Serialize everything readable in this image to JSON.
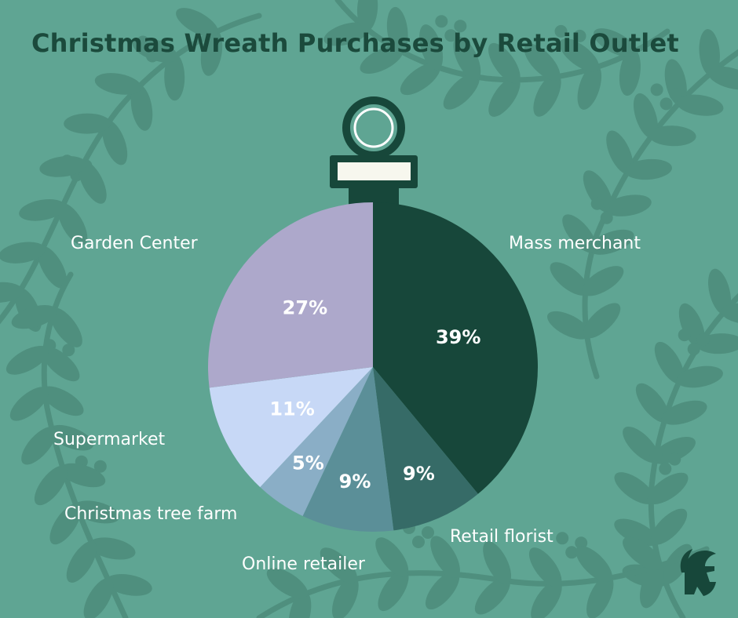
{
  "title": "Christmas Wreath Purchases by Retail Outlet",
  "chart_data": {
    "type": "pie",
    "title": "Christmas Wreath Purchases by Retail Outlet",
    "categories": [
      "Mass merchant",
      "Retail florist",
      "Online retailer",
      "Christmas tree farm",
      "Supermarket",
      "Garden Center"
    ],
    "values": [
      39,
      9,
      9,
      5,
      11,
      27
    ],
    "value_labels": [
      "39%",
      "9%",
      "9%",
      "5%",
      "11%",
      "27%"
    ],
    "colors": [
      "#17473a",
      "#366b67",
      "#5b8f98",
      "#8aaec6",
      "#c7d8f6",
      "#ada8cb"
    ],
    "legend": "none",
    "labels_placement": "outside"
  },
  "colors": {
    "background": "#5fa593",
    "leaf": "#4f8f7e",
    "ornament_cap": "#17473a",
    "title": "#1b4a3c"
  },
  "icons": {
    "decoration": "laurel-branch",
    "ornament": "ornament-hanger",
    "logo": "spartan-helmet-logo"
  }
}
